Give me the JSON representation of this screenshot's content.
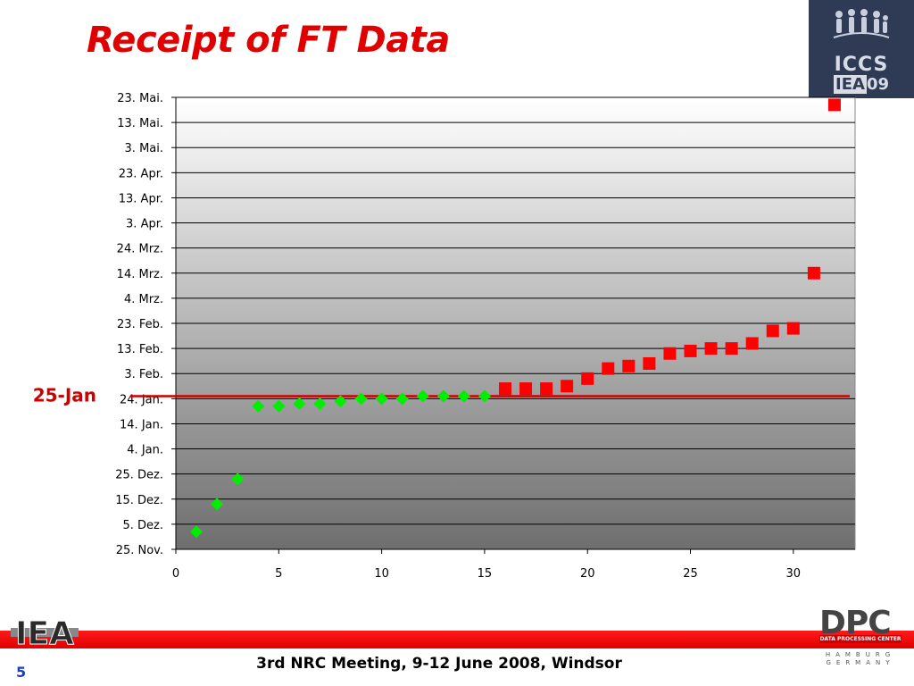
{
  "slide": {
    "title": "Receipt of FT Data",
    "footer": "3rd NRC Meeting, 9-12 June 2008, Windsor",
    "page_number": "5"
  },
  "logos": {
    "iccs": {
      "line1": "ICCS",
      "iea": "IEA",
      "year": "09"
    },
    "iea": "IEA",
    "dpc": {
      "name": "DPC",
      "sub": "DATA PROCESSING CENTER",
      "city": "HAMBURG GERMANY"
    }
  },
  "colors": {
    "title": "#e00000",
    "series_green": "#00ee00",
    "series_red": "#ff0000",
    "reference_line": "#cc0000",
    "page_number": "#1a3cc8"
  },
  "chart_data": {
    "type": "scatter",
    "title": "",
    "xlabel": "",
    "ylabel": "",
    "xlim": [
      0,
      33
    ],
    "x_ticks": [
      0,
      5,
      10,
      15,
      20,
      25,
      30
    ],
    "y_ticks": [
      "25. Nov.",
      "5. Dez.",
      "15. Dez.",
      "25. Dez.",
      "4. Jan.",
      "14. Jan.",
      "24. Jan.",
      "3. Feb.",
      "13. Feb.",
      "23. Feb.",
      "4. Mrz.",
      "14. Mrz.",
      "24. Mrz.",
      "3. Apr.",
      "13. Apr.",
      "23. Apr.",
      "3. Mai.",
      "13. Mai.",
      "23. Mai."
    ],
    "y_tick_dates": [
      "2007-11-25",
      "2007-12-05",
      "2007-12-15",
      "2007-12-25",
      "2008-01-04",
      "2008-01-14",
      "2008-01-24",
      "2008-02-03",
      "2008-02-13",
      "2008-02-23",
      "2008-03-04",
      "2008-03-14",
      "2008-03-24",
      "2008-04-03",
      "2008-04-13",
      "2008-04-23",
      "2008-05-03",
      "2008-05-13",
      "2008-05-23"
    ],
    "ylim": [
      "2007-11-25",
      "2008-05-23"
    ],
    "grid": "horizontal",
    "reference_line": {
      "label": "25-Jan",
      "y": "2008-01-25"
    },
    "series": [
      {
        "marker": "diamond",
        "color": "#00ee00",
        "points": [
          {
            "x": 1,
            "y": "2007-12-02"
          },
          {
            "x": 2,
            "y": "2007-12-13"
          },
          {
            "x": 3,
            "y": "2007-12-23"
          },
          {
            "x": 4,
            "y": "2008-01-21"
          },
          {
            "x": 5,
            "y": "2008-01-21"
          },
          {
            "x": 6,
            "y": "2008-01-22"
          },
          {
            "x": 7,
            "y": "2008-01-22"
          },
          {
            "x": 8,
            "y": "2008-01-23"
          },
          {
            "x": 9,
            "y": "2008-01-24"
          },
          {
            "x": 10,
            "y": "2008-01-24"
          },
          {
            "x": 11,
            "y": "2008-01-24"
          },
          {
            "x": 12,
            "y": "2008-01-25"
          },
          {
            "x": 13,
            "y": "2008-01-25"
          },
          {
            "x": 14,
            "y": "2008-01-25"
          },
          {
            "x": 15,
            "y": "2008-01-25"
          }
        ]
      },
      {
        "marker": "square",
        "color": "#ff0000",
        "points": [
          {
            "x": 16,
            "y": "2008-01-28"
          },
          {
            "x": 17,
            "y": "2008-01-28"
          },
          {
            "x": 18,
            "y": "2008-01-28"
          },
          {
            "x": 19,
            "y": "2008-01-29"
          },
          {
            "x": 20,
            "y": "2008-02-01"
          },
          {
            "x": 21,
            "y": "2008-02-05"
          },
          {
            "x": 22,
            "y": "2008-02-06"
          },
          {
            "x": 23,
            "y": "2008-02-07"
          },
          {
            "x": 24,
            "y": "2008-02-11"
          },
          {
            "x": 25,
            "y": "2008-02-12"
          },
          {
            "x": 26,
            "y": "2008-02-13"
          },
          {
            "x": 27,
            "y": "2008-02-13"
          },
          {
            "x": 28,
            "y": "2008-02-15"
          },
          {
            "x": 29,
            "y": "2008-02-20"
          },
          {
            "x": 30,
            "y": "2008-02-21"
          },
          {
            "x": 31,
            "y": "2008-03-14"
          },
          {
            "x": 32,
            "y": "2008-05-20"
          }
        ]
      }
    ]
  }
}
